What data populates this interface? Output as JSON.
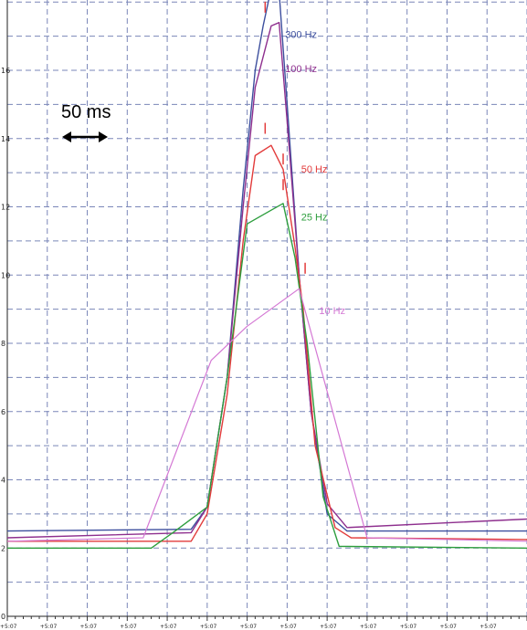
{
  "chart_data": {
    "type": "line",
    "title": "",
    "xlabel": "",
    "ylabel": "",
    "ylim": [
      0,
      18
    ],
    "y_ticks": [
      "0",
      "2",
      "4",
      "6",
      "8",
      "10",
      "12",
      "14",
      "16"
    ],
    "x_tick_labels": [
      "+5:07",
      "+5:07",
      "+5:07",
      "+5:07",
      "+5:07",
      "+5:07",
      "+5:07",
      "+5:07",
      "+5:07",
      "+5:07",
      "+5:07",
      "+5:07",
      "+5:07"
    ],
    "grid": true,
    "scale_annotation": "50 ms",
    "series": [
      {
        "name": "300 Hz",
        "color": "#3d4f9e",
        "points": [
          [
            0,
            2.5
          ],
          [
            4.6,
            2.55
          ],
          [
            5.0,
            3.2
          ],
          [
            5.5,
            7.0
          ],
          [
            5.9,
            12.5
          ],
          [
            6.2,
            16.0
          ],
          [
            6.4,
            17.3
          ],
          [
            6.6,
            18.4
          ],
          [
            6.8,
            18.3
          ],
          [
            7.0,
            15.0
          ],
          [
            7.3,
            10.0
          ],
          [
            7.6,
            6.0
          ],
          [
            8.0,
            3.0
          ],
          [
            8.5,
            2.5
          ],
          [
            13,
            2.5
          ]
        ]
      },
      {
        "name": "100 Hz",
        "color": "#8e2f8e",
        "points": [
          [
            0,
            2.3
          ],
          [
            4.6,
            2.45
          ],
          [
            5.0,
            3.2
          ],
          [
            5.5,
            7.0
          ],
          [
            5.9,
            12.0
          ],
          [
            6.2,
            15.5
          ],
          [
            6.6,
            17.3
          ],
          [
            6.8,
            17.4
          ],
          [
            7.0,
            14.5
          ],
          [
            7.3,
            10.0
          ],
          [
            7.6,
            6.0
          ],
          [
            8.0,
            3.3
          ],
          [
            8.5,
            2.6
          ],
          [
            13,
            2.85
          ]
        ]
      },
      {
        "name": "50 Hz",
        "color": "#e23b3b",
        "points": [
          [
            0,
            2.2
          ],
          [
            4.6,
            2.2
          ],
          [
            5.0,
            3.0
          ],
          [
            5.5,
            6.5
          ],
          [
            5.9,
            11.0
          ],
          [
            6.2,
            13.5
          ],
          [
            6.6,
            13.8
          ],
          [
            6.9,
            13.1
          ],
          [
            7.2,
            10.8
          ],
          [
            7.4,
            9.0
          ],
          [
            7.7,
            5.0
          ],
          [
            8.2,
            2.6
          ],
          [
            8.6,
            2.3
          ],
          [
            13,
            2.25
          ]
        ]
      },
      {
        "name": "25 Hz",
        "color": "#2e9e3e",
        "points": [
          [
            0,
            2.0
          ],
          [
            3.6,
            2.0
          ],
          [
            4.2,
            2.5
          ],
          [
            5.0,
            3.2
          ],
          [
            5.5,
            7.0
          ],
          [
            6.0,
            11.5
          ],
          [
            6.6,
            11.9
          ],
          [
            6.9,
            12.1
          ],
          [
            7.2,
            10.5
          ],
          [
            7.5,
            8.0
          ],
          [
            7.9,
            3.5
          ],
          [
            8.3,
            2.05
          ],
          [
            13,
            2.0
          ]
        ]
      },
      {
        "name": "10 Hz",
        "color": "#d478d4",
        "points": [
          [
            0,
            2.2
          ],
          [
            3.4,
            2.3
          ],
          [
            5.1,
            7.5
          ],
          [
            6.0,
            8.5
          ],
          [
            7.3,
            9.6
          ],
          [
            9.0,
            2.3
          ],
          [
            13,
            2.2
          ]
        ]
      }
    ]
  }
}
